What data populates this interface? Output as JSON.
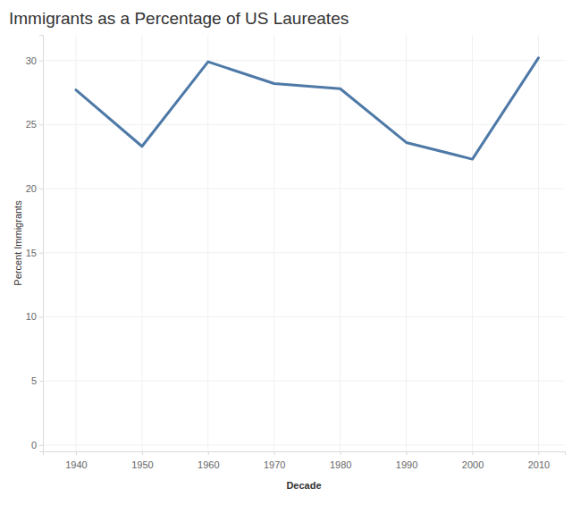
{
  "chart_data": {
    "type": "line",
    "title": "Immigrants as a Percentage of US Laureates",
    "x_label": "Decade",
    "y_label": "Percent Immigrants",
    "x": [
      1940,
      1950,
      1960,
      1970,
      1980,
      1990,
      2000,
      2010
    ],
    "values": [
      27.7,
      23.3,
      29.9,
      28.2,
      27.8,
      23.6,
      22.3,
      30.2
    ],
    "color": "#4e79a7",
    "xlim": [
      1935,
      2014
    ],
    "xticks": [
      1940,
      1950,
      1960,
      1970,
      1980,
      1990,
      2000,
      2010
    ],
    "ylim": [
      -0.5,
      32
    ],
    "yticks": [
      0,
      5,
      10,
      15,
      20,
      25,
      30
    ],
    "grid": true
  }
}
